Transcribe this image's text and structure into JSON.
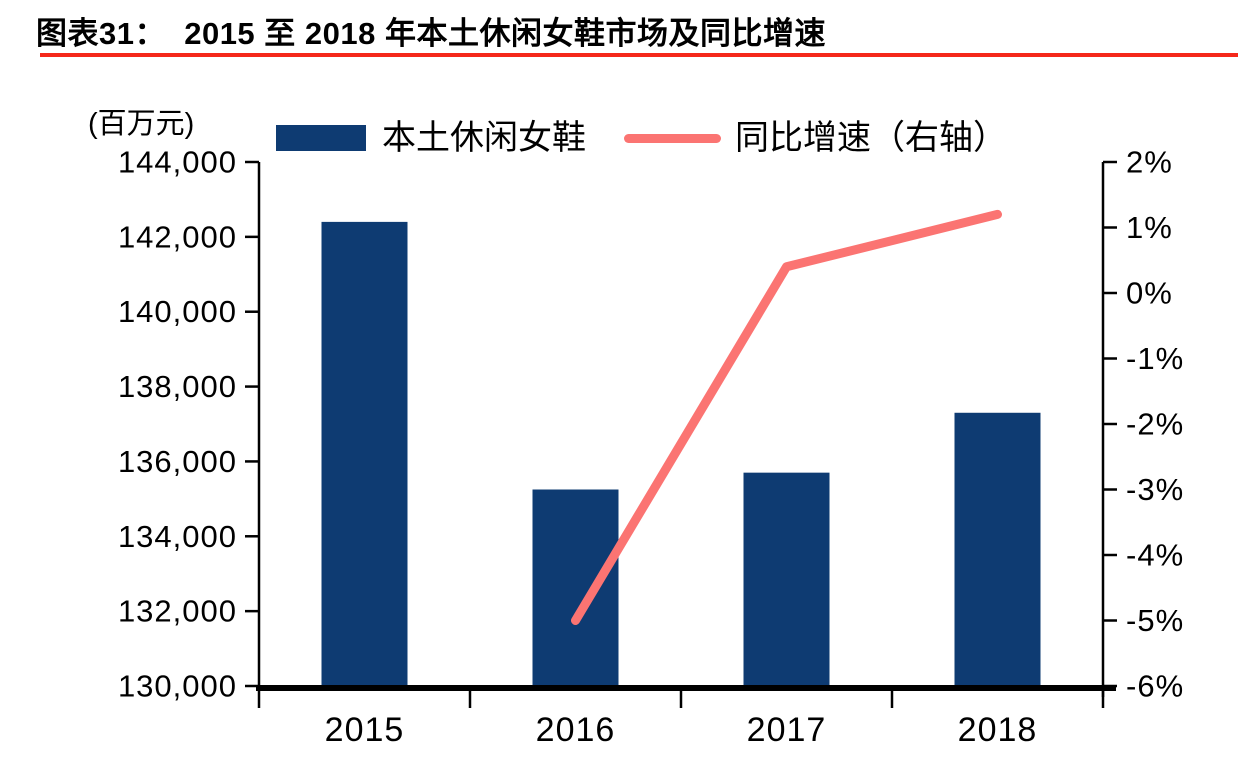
{
  "header": {
    "title": "图表31：  2015 至 2018 年本土休闲女鞋市场及同比增速",
    "rule_color": "#f5281a"
  },
  "chart_data": {
    "type": "bar",
    "subtype": "bar-line-combo",
    "title": "2015 至 2018 年本土休闲女鞋市场及同比增速",
    "categories": [
      "2015",
      "2016",
      "2017",
      "2018"
    ],
    "series": [
      {
        "name": "本土休闲女鞋",
        "type": "bar",
        "axis": "left",
        "color": "#0e3b72",
        "values": [
          142400,
          135250,
          135700,
          137300
        ]
      },
      {
        "name": "同比增速（右轴）",
        "type": "line",
        "axis": "right",
        "color": "#fb7472",
        "unit": "%",
        "values": [
          null,
          -5.0,
          0.4,
          1.2
        ]
      }
    ],
    "left_axis": {
      "label": "(百万元)",
      "min": 130000,
      "max": 144000,
      "step": 2000,
      "tick_labels": [
        "144,000",
        "142,000",
        "140,000",
        "138,000",
        "136,000",
        "134,000",
        "132,000",
        "130,000"
      ]
    },
    "right_axis": {
      "min": -6,
      "max": 2,
      "step": 1,
      "tick_labels": [
        "2%",
        "1%",
        "0%",
        "-1%",
        "-2%",
        "-3%",
        "-4%",
        "-5%",
        "-6%"
      ]
    },
    "legend_position": "top",
    "grid": false,
    "axis_color": "#000000"
  }
}
